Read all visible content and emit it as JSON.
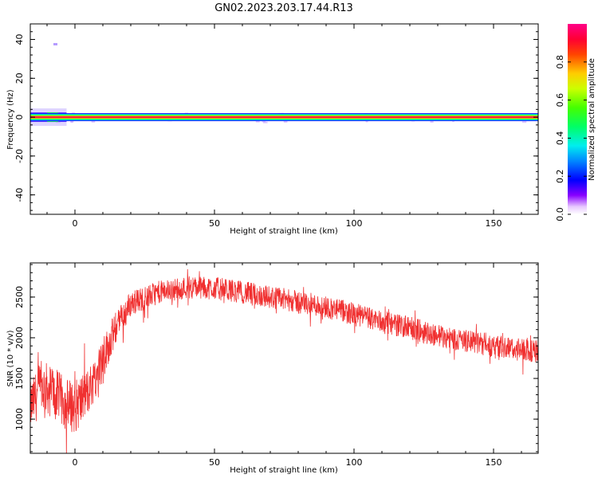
{
  "figure": {
    "title": "GN02.2023.203.17.44.R13"
  },
  "colors": {
    "snr_line": "#f03030",
    "spectral_band_core": "#f02040",
    "spectral_band_mid": "#ffdd00",
    "spectral_band_outer": "#00e0d0"
  },
  "colorbar": {
    "label": "Normalized spectral amplitude",
    "ticks": [
      "0.0",
      "0.2",
      "0.4",
      "0.6",
      "0.8"
    ],
    "tick_values": [
      0.0,
      0.2,
      0.4,
      0.6,
      0.8
    ],
    "range": [
      0,
      1
    ],
    "colormap": "gist_rainbow (magenta-red at 1.0, white at 0.0)"
  },
  "chart_data": [
    {
      "type": "heatmap",
      "title": "",
      "xlabel": "Height of straight line (km)",
      "ylabel": "Frequency (Hz)",
      "xlim": [
        -16,
        166
      ],
      "ylim": [
        -50,
        48
      ],
      "xticks": [
        0,
        50,
        100,
        150
      ],
      "xtick_labels": [
        "0",
        "50",
        "100",
        "150"
      ],
      "yticks": [
        -40,
        -20,
        0,
        20,
        40
      ],
      "ytick_labels": [
        "-40",
        "-20",
        "0",
        "20",
        "40"
      ],
      "band": {
        "center_frequency": 0,
        "x_start": -16,
        "x_end": 166
      },
      "grid": false
    },
    {
      "type": "line",
      "title": "",
      "xlabel": "Height of straight line (km)",
      "ylabel": "SNR (10 * v/v)",
      "xlim": [
        -16,
        166
      ],
      "ylim": [
        580,
        2920
      ],
      "xticks": [
        0,
        50,
        100,
        150
      ],
      "xtick_labels": [
        "0",
        "50",
        "100",
        "150"
      ],
      "yticks": [
        1000,
        1500,
        2000,
        2500
      ],
      "ytick_labels": [
        "1000",
        "1500",
        "2000",
        "2500"
      ],
      "grid": false,
      "trend_x": [
        -16,
        -12,
        -8,
        -4,
        0,
        5,
        10,
        15,
        20,
        30,
        40,
        50,
        60,
        70,
        80,
        90,
        100,
        110,
        120,
        130,
        140,
        150,
        160,
        166
      ],
      "trend_y": [
        1150,
        1400,
        1350,
        1200,
        1150,
        1350,
        1750,
        2150,
        2420,
        2560,
        2620,
        2610,
        2560,
        2500,
        2440,
        2380,
        2290,
        2200,
        2120,
        2030,
        1960,
        1910,
        1850,
        1830
      ],
      "noise_amplitude": [
        300,
        320,
        320,
        320,
        330,
        300,
        260,
        200,
        160,
        140,
        140,
        140,
        140,
        140,
        140,
        140,
        140,
        140,
        140,
        140,
        140,
        140,
        140,
        140
      ]
    }
  ]
}
